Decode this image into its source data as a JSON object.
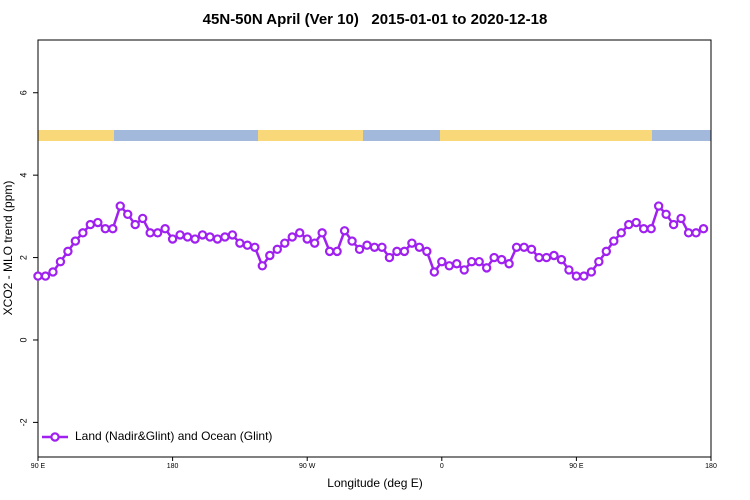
{
  "chart_data": {
    "type": "line",
    "title": "45N-50N April (Ver 10)   2015-01-01 to 2020-12-18",
    "xlabel": "Longitude (deg E)",
    "ylabel": "XCO2 - MLO trend (ppm)",
    "xlim": [
      90,
      540
    ],
    "ylim": [
      -2.84,
      7.28
    ],
    "xticks": [
      {
        "value": 90,
        "label": "90 E"
      },
      {
        "value": 180,
        "label": "180"
      },
      {
        "value": 270,
        "label": "90 W"
      },
      {
        "value": 360,
        "label": "0"
      },
      {
        "value": 450,
        "label": "90 E"
      },
      {
        "value": 540,
        "label": "180"
      }
    ],
    "yticks": [
      -2,
      0,
      2,
      4,
      6
    ],
    "legend": "bottom-left",
    "x": [
      90,
      95,
      100,
      105,
      110,
      115,
      120,
      125,
      130,
      135,
      140,
      145,
      150,
      155,
      160,
      165,
      170,
      175,
      180,
      185,
      190,
      195,
      200,
      205,
      210,
      215,
      220,
      225,
      230,
      235,
      240,
      245,
      250,
      255,
      260,
      265,
      270,
      275,
      280,
      285,
      290,
      295,
      300,
      305,
      310,
      315,
      320,
      325,
      330,
      335,
      340,
      345,
      350,
      355,
      360,
      365,
      370,
      375,
      380,
      385,
      390,
      395,
      400,
      405,
      410,
      415,
      420,
      425,
      430,
      435,
      440,
      445,
      450,
      455,
      460,
      465,
      470,
      475,
      480,
      485,
      490,
      495,
      500,
      505,
      510,
      515,
      520,
      525,
      530,
      535
    ],
    "series": [
      {
        "name": "Land (Nadir&Glint) and Ocean (Glint)",
        "color": "#a020f0",
        "values": [
          1.55,
          1.55,
          1.65,
          1.9,
          2.15,
          2.4,
          2.6,
          2.8,
          2.85,
          2.7,
          2.7,
          3.25,
          3.05,
          2.8,
          2.95,
          2.6,
          2.6,
          2.7,
          2.45,
          2.55,
          2.5,
          2.45,
          2.55,
          2.5,
          2.45,
          2.5,
          2.55,
          2.35,
          2.3,
          2.25,
          1.8,
          2.05,
          2.2,
          2.35,
          2.5,
          2.6,
          2.45,
          2.35,
          2.6,
          2.15,
          2.15,
          2.65,
          2.4,
          2.2,
          2.3,
          2.25,
          2.25,
          2.0,
          2.15,
          2.15,
          2.35,
          2.25,
          2.15,
          1.65,
          1.9,
          1.8,
          1.85,
          1.7,
          1.9,
          1.9,
          1.75,
          2.0,
          1.95,
          1.85,
          2.25,
          2.25,
          2.2,
          2.0,
          2.0,
          2.05,
          1.95,
          1.7,
          1.55,
          1.55,
          1.65,
          1.9,
          2.15,
          2.4,
          2.6,
          2.8,
          2.85,
          2.7,
          2.7,
          3.25,
          3.05,
          2.8,
          2.95,
          2.6,
          2.6,
          2.7
        ]
      }
    ]
  }
}
